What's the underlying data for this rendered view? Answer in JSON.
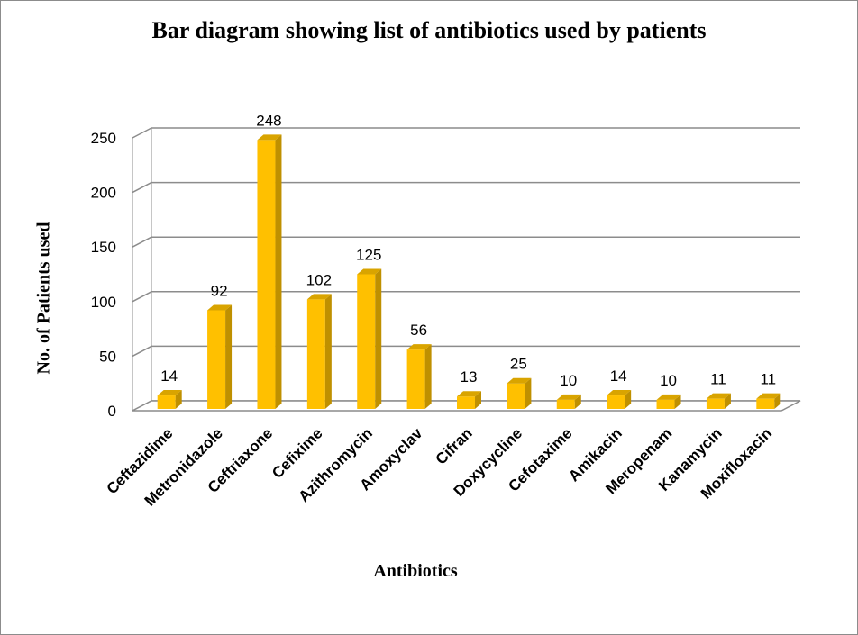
{
  "chart_data": {
    "type": "bar",
    "title": "Bar diagram showing list of antibiotics used by patients",
    "xlabel": "Antibiotics",
    "ylabel": "No. of Patients used",
    "categories": [
      "Ceftazidime",
      "Metronidazole",
      "Ceftriaxone",
      "Cefixime",
      "Azithromycin",
      "Amoxyclav",
      "Cifran",
      "Doxycycline",
      "Cefotaxime",
      "Amikacin",
      "Meropenam",
      "Kanamycin",
      "Moxifloxacin"
    ],
    "values": [
      14,
      92,
      248,
      102,
      125,
      56,
      13,
      25,
      10,
      14,
      10,
      11,
      11
    ],
    "ylim": [
      0,
      250
    ],
    "yticks": [
      0,
      50,
      100,
      150,
      200,
      250
    ],
    "grid": true,
    "legend": "none",
    "data_labels": true,
    "bar_color": "#FFC000",
    "bar_side_color": "#BF9000",
    "bar_top_color": "#D9A400",
    "gridline_color": "#8C8C8C"
  }
}
